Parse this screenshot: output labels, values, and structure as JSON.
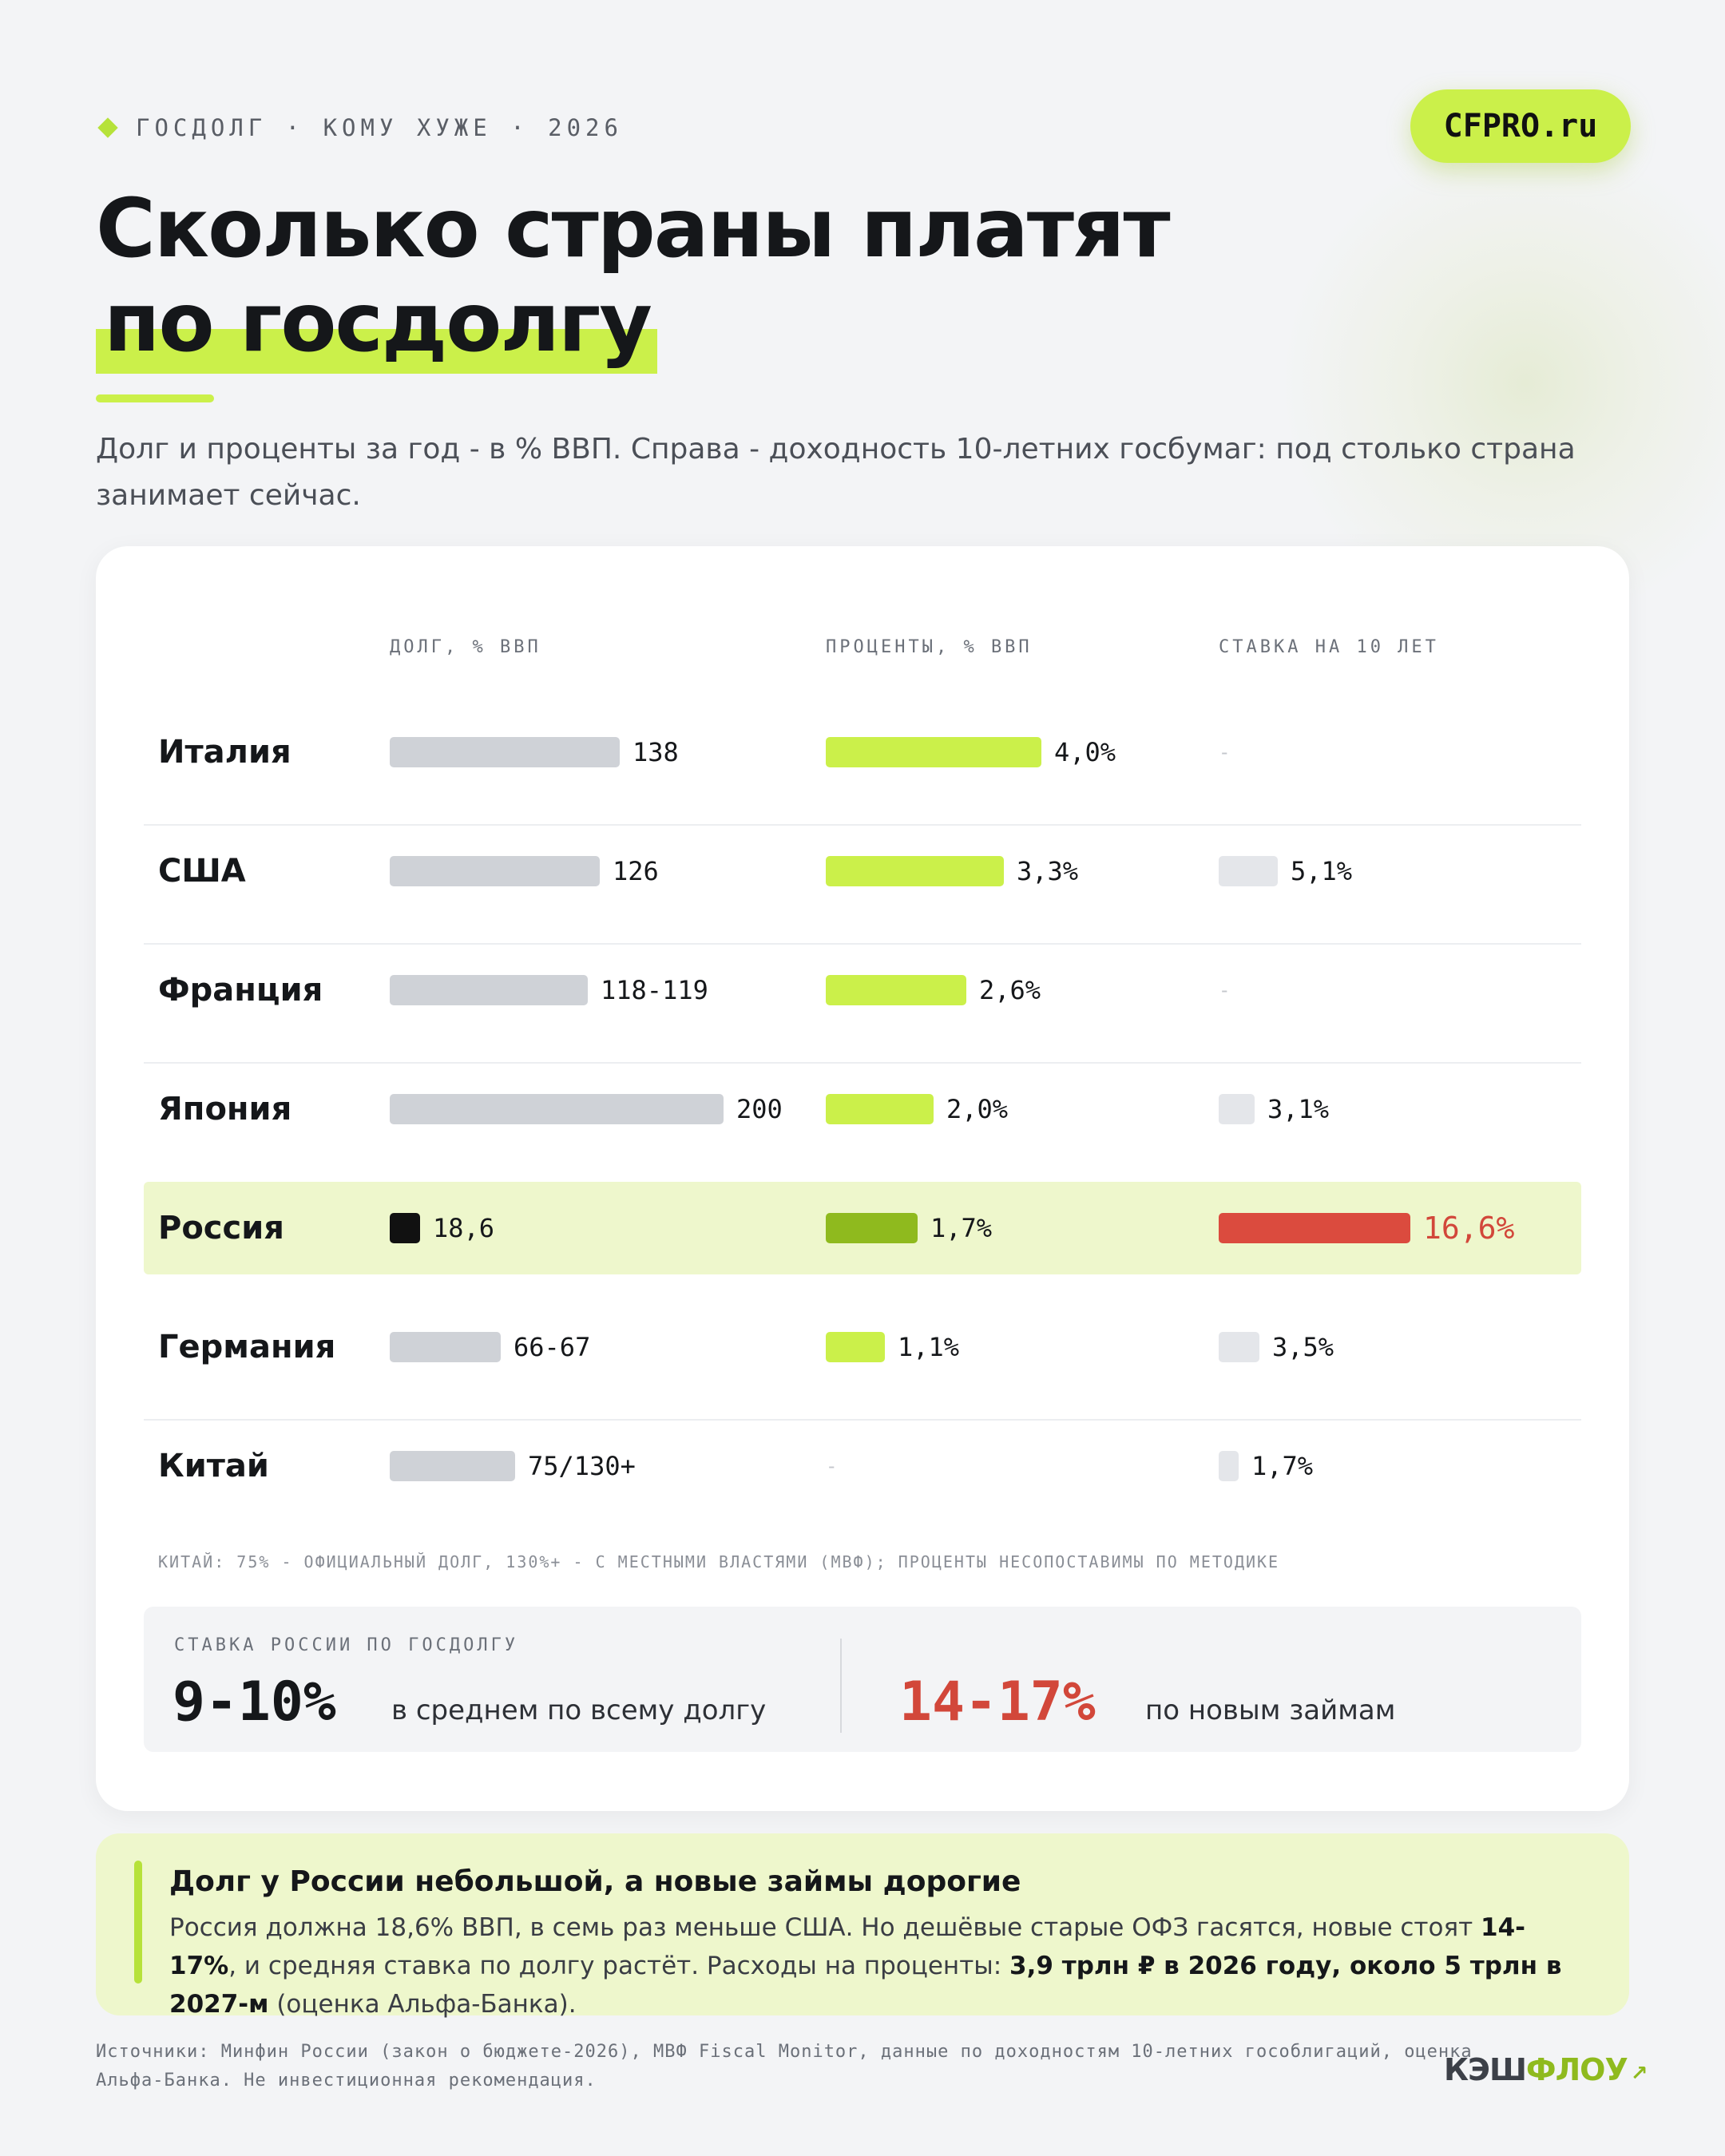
{
  "header": {
    "kicker": "ГОСДОЛГ · КОМУ ХУЖЕ · 2026",
    "brand_pill": "CFPRO.ru",
    "title_line1": "Сколько страны платят",
    "title_line2": "по госдолгу",
    "subtitle": "Долг и проценты за год - в % ВВП. Справа - доходность 10-летних госбумаг: под столько страна занимает сейчас."
  },
  "chart_data": {
    "type": "table",
    "columns": [
      "ДОЛГ, % ВВП",
      "ПРОЦЕНТЫ, % ВВП",
      "СТАВКА НА 10 ЛЕТ"
    ],
    "rows": [
      {
        "country": "Италия",
        "debt_label": "138",
        "debt": 138,
        "interest_label": "4,0%",
        "interest": 4.0,
        "rate_label": "-",
        "rate": null,
        "highlight": false
      },
      {
        "country": "США",
        "debt_label": "126",
        "debt": 126,
        "interest_label": "3,3%",
        "interest": 3.3,
        "rate_label": "5,1%",
        "rate": 5.1,
        "highlight": false
      },
      {
        "country": "Франция",
        "debt_label": "118-119",
        "debt": 118.5,
        "interest_label": "2,6%",
        "interest": 2.6,
        "rate_label": "-",
        "rate": null,
        "highlight": false
      },
      {
        "country": "Япония",
        "debt_label": "200",
        "debt": 200,
        "interest_label": "2,0%",
        "interest": 2.0,
        "rate_label": "3,1%",
        "rate": 3.1,
        "highlight": false
      },
      {
        "country": "Россия",
        "debt_label": "18,6",
        "debt": 18.6,
        "interest_label": "1,7%",
        "interest": 1.7,
        "rate_label": "16,6%",
        "rate": 16.6,
        "highlight": true
      },
      {
        "country": "Германия",
        "debt_label": "66-67",
        "debt": 66.5,
        "interest_label": "1,1%",
        "interest": 1.1,
        "rate_label": "3,5%",
        "rate": 3.5,
        "highlight": false
      },
      {
        "country": "Китай",
        "debt_label": "75/130+",
        "debt": 75,
        "interest_label": "-",
        "interest": null,
        "rate_label": "1,7%",
        "rate": 1.7,
        "highlight": false
      }
    ],
    "note": "КИТАЙ: 75% - ОФИЦИАЛЬНЫЙ ДОЛГ, 130%+ - С МЕСТНЫМИ ВЛАСТЯМИ (МВФ); ПРОЦЕНТЫ НЕСОПОСТАВИМЫ ПО МЕТОДИКЕ",
    "colors": {
      "debt": "#cfd2d7",
      "interest": "#cbf04a",
      "interest_russia": "#8fba1e",
      "rate": "#e4e6ea",
      "rate_russia": "#db4b3e",
      "debt_russia": "#111111",
      "highlight_row": "#eef7cc"
    }
  },
  "summary": {
    "heading": "СТАВКА РОССИИ ПО ГОСДОЛГУ",
    "avg_value": "9-10%",
    "avg_label": "в среднем по всему долгу",
    "new_value": "14-17%",
    "new_label": "по новым займам"
  },
  "callout": {
    "title": "Долг у России небольшой, а новые займы дорогие",
    "t1": "Россия должна 18,6% ВВП, в семь раз меньше США. Но дешёвые старые ОФЗ гасятся, новые стоят ",
    "b1": "14-17%",
    "t2": ", и средняя ставка по долгу растёт. Расходы на проценты: ",
    "b2": "3,9 трлн ₽ в 2026 году, около 5 трлн в 2027-м",
    "t3": " (оценка Альфа-Банка)."
  },
  "footer": {
    "sources": "Источники: Минфин России (закон о бюджете-2026), МВФ Fiscal Monitor, данные по доходностям 10-летних гособлигаций, оценка Альфа-Банка. Не инвестиционная рекомендация.",
    "logo_part1": "КЭШ",
    "logo_part2": "ФЛОУ",
    "logo_arrow": "↗"
  }
}
